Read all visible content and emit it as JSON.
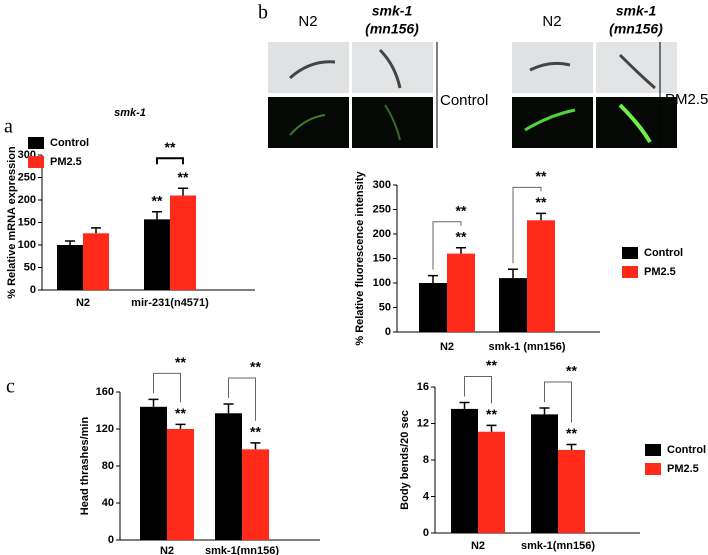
{
  "panel_labels": [
    "a",
    "b",
    "c"
  ],
  "image_panel": {
    "column_labels": [
      "N2",
      "smk-1",
      "(mn156)",
      "N2",
      "smk-1",
      "(mn156)"
    ],
    "row_group_labels": [
      "Control",
      "PM2.5"
    ]
  },
  "chart_data": [
    {
      "type": "bar",
      "title": "smk-1",
      "y_label": "% Relative mRNA expression",
      "categories": [
        "N2",
        "mir-231(n4571)"
      ],
      "series": [
        {
          "name": "Control",
          "color": "#000000",
          "values": [
            100,
            157
          ],
          "errors": [
            9,
            17
          ]
        },
        {
          "name": "PM2.5",
          "color": "#ff2a1a",
          "values": [
            126,
            210
          ],
          "errors": [
            12,
            16
          ]
        }
      ],
      "ylim": [
        0,
        300
      ],
      "yticks": [
        0,
        50,
        100,
        150,
        200,
        250,
        300
      ],
      "legend": "upper left",
      "annotations": [
        "**",
        "**",
        "**"
      ]
    },
    {
      "type": "bar",
      "y_label": "% Relative fluorescence intensity",
      "categories": [
        "N2",
        "smk-1 (mn156)"
      ],
      "series": [
        {
          "name": "Control",
          "color": "#000000",
          "values": [
            100,
            110
          ],
          "errors": [
            15,
            18
          ]
        },
        {
          "name": "PM2.5",
          "color": "#ff2a1a",
          "values": [
            160,
            228
          ],
          "errors": [
            12,
            14
          ]
        }
      ],
      "ylim": [
        0,
        300
      ],
      "yticks": [
        0,
        50,
        100,
        150,
        200,
        250,
        300
      ],
      "legend": "right",
      "annotations": [
        "**",
        "**",
        "**",
        "**"
      ]
    },
    {
      "type": "bar",
      "y_label": "Head thrashes/min",
      "categories": [
        "N2",
        "smk-1(mn156)"
      ],
      "series": [
        {
          "name": "Control",
          "color": "#000000",
          "values": [
            144,
            137
          ],
          "errors": [
            8,
            10
          ]
        },
        {
          "name": "PM2.5",
          "color": "#ff2a1a",
          "values": [
            120,
            98
          ],
          "errors": [
            5,
            7
          ]
        }
      ],
      "ylim": [
        0,
        160
      ],
      "yticks": [
        0,
        40,
        80,
        120,
        160
      ],
      "annotations": [
        "**",
        "**",
        "**",
        "**"
      ]
    },
    {
      "type": "bar",
      "y_label": "Body bends/20 sec",
      "categories": [
        "N2",
        "smk-1(mn156)"
      ],
      "series": [
        {
          "name": "Control",
          "color": "#000000",
          "values": [
            13.6,
            13.0
          ],
          "errors": [
            0.7,
            0.7
          ]
        },
        {
          "name": "PM2.5",
          "color": "#ff2a1a",
          "values": [
            11.1,
            9.1
          ],
          "errors": [
            0.7,
            0.6
          ]
        }
      ],
      "ylim": [
        0,
        16
      ],
      "yticks": [
        0,
        4,
        8,
        12,
        16
      ],
      "legend": "right",
      "annotations": [
        "**",
        "**",
        "**",
        "**"
      ]
    }
  ]
}
